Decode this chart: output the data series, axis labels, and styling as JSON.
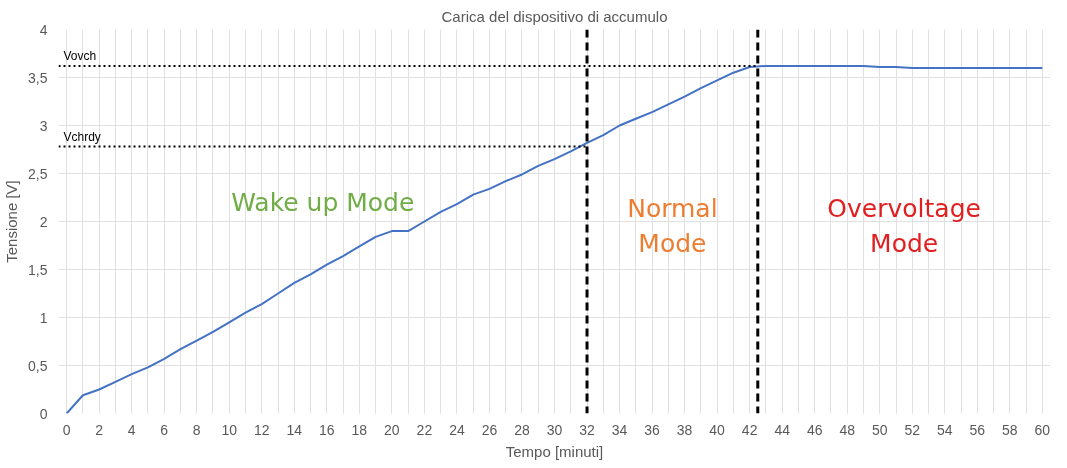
{
  "chart_data": {
    "type": "line",
    "title": "Carica del dispositivo di accumulo",
    "xlabel": "Tempo [minuti]",
    "ylabel": "Tensione [V]",
    "x": [
      0,
      1,
      2,
      3,
      4,
      5,
      6,
      7,
      8,
      9,
      10,
      11,
      12,
      13,
      14,
      15,
      16,
      17,
      18,
      19,
      20,
      21,
      22,
      23,
      24,
      25,
      26,
      27,
      28,
      29,
      30,
      31,
      32,
      33,
      34,
      35,
      36,
      37,
      38,
      39,
      40,
      41,
      42,
      43,
      44,
      45,
      46,
      47,
      48,
      49,
      50,
      51,
      52,
      53,
      54,
      55,
      56,
      57,
      58,
      59,
      60
    ],
    "series": [
      {
        "color": "#4472c4",
        "values": [
          0,
          0.19,
          0.25,
          0.33,
          0.41,
          0.48,
          0.57,
          0.67,
          0.76,
          0.85,
          0.95,
          1.05,
          1.14,
          1.25,
          1.36,
          1.45,
          1.55,
          1.64,
          1.74,
          1.84,
          1.9,
          1.9,
          2.0,
          2.1,
          2.18,
          2.28,
          2.34,
          2.42,
          2.49,
          2.58,
          2.65,
          2.73,
          2.82,
          2.9,
          3.0,
          3.07,
          3.14,
          3.22,
          3.3,
          3.39,
          3.47,
          3.55,
          3.61,
          3.62,
          3.62,
          3.62,
          3.62,
          3.62,
          3.62,
          3.62,
          3.61,
          3.61,
          3.6,
          3.6,
          3.6,
          3.6,
          3.6,
          3.6,
          3.6,
          3.6,
          3.6
        ]
      },
      {
        "type": "line",
        "name": "Vovch",
        "color": "#000000",
        "line_style": "dotted",
        "x": [
          -0.5,
          42.5
        ],
        "values": [
          3.62,
          3.62
        ]
      },
      {
        "type": "line",
        "name": "Vchrdy",
        "color": "#000000",
        "line_style": "dotted",
        "x": [
          -0.5,
          32
        ],
        "values": [
          2.78,
          2.78
        ]
      }
    ],
    "ref_lines": [
      {
        "axis": "x",
        "value": 32,
        "color": "#000000",
        "line_style": "dashed"
      },
      {
        "axis": "x",
        "value": 42.5,
        "color": "#000000",
        "line_style": "dashed"
      }
    ],
    "annotations": [
      "Wake up Mode",
      "Normal\nMode",
      "Overvoltage\nMode"
    ],
    "xlim": [
      -0.5,
      60.5
    ],
    "ylim": [
      0,
      4
    ],
    "xticks": [
      0,
      {
        "value": 1,
        "label": null
      },
      2,
      {
        "value": 3,
        "label": null
      },
      4,
      {
        "value": 5,
        "label": null
      },
      6,
      {
        "value": 7,
        "label": null
      },
      8,
      {
        "value": 9,
        "label": null
      },
      10,
      {
        "value": 11,
        "label": null
      },
      12,
      {
        "value": 13,
        "label": null
      },
      14,
      {
        "value": 15,
        "label": null
      },
      16,
      {
        "value": 17,
        "label": null
      },
      18,
      {
        "value": 19,
        "label": null
      },
      20,
      {
        "value": 21,
        "label": null
      },
      22,
      {
        "value": 23,
        "label": null
      },
      24,
      {
        "value": 25,
        "label": null
      },
      26,
      {
        "value": 27,
        "label": null
      },
      28,
      {
        "value": 29,
        "label": null
      },
      30,
      {
        "value": 31,
        "label": null
      },
      32,
      {
        "value": 33,
        "label": null
      },
      34,
      {
        "value": 35,
        "label": null
      },
      36,
      {
        "value": 37,
        "label": null
      },
      38,
      {
        "value": 39,
        "label": null
      },
      40,
      {
        "value": 41,
        "label": null
      },
      42,
      {
        "value": 43,
        "label": null
      },
      44,
      {
        "value": 45,
        "label": null
      },
      46,
      {
        "value": 47,
        "label": null
      },
      48,
      {
        "value": 49,
        "label": null
      },
      50,
      {
        "value": 51,
        "label": null
      },
      52,
      {
        "value": 53,
        "label": null
      },
      54,
      {
        "value": 55,
        "label": null
      },
      56,
      {
        "value": 57,
        "label": null
      },
      58,
      {
        "value": 59,
        "label": null
      },
      60
    ],
    "yticks": [
      0,
      {
        "value": 0.5,
        "label": "0,5"
      },
      1,
      {
        "value": 1.5,
        "label": "1,5"
      },
      2,
      {
        "value": 2.5,
        "label": "2,5"
      },
      3,
      {
        "value": 3.5,
        "label": "3,5"
      },
      4
    ],
    "grid": true,
    "marker": "none",
    "line_style": "solid"
  }
}
